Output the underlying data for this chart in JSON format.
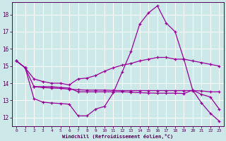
{
  "bg_color": "#cce8e8",
  "grid_color": "#ffffff",
  "line_color": "#990099",
  "xlabel": "Windchill (Refroidissement éolien,°C)",
  "ylim": [
    11.5,
    18.7
  ],
  "xlim": [
    -0.5,
    23.5
  ],
  "yticks": [
    12,
    13,
    14,
    15,
    16,
    17,
    18
  ],
  "xticks": [
    0,
    1,
    2,
    3,
    4,
    5,
    6,
    7,
    8,
    9,
    10,
    11,
    12,
    13,
    14,
    15,
    16,
    17,
    18,
    19,
    20,
    21,
    22,
    23
  ],
  "c1_x": [
    0,
    1,
    2,
    3,
    4,
    5,
    6,
    7,
    8,
    9,
    10,
    11,
    12,
    13,
    14,
    15,
    16,
    17,
    18,
    19,
    20,
    21,
    22,
    23
  ],
  "c1_y": [
    15.3,
    14.9,
    14.25,
    14.1,
    14.0,
    14.0,
    13.9,
    14.25,
    14.3,
    14.45,
    14.7,
    14.9,
    15.05,
    15.15,
    15.3,
    15.4,
    15.5,
    15.5,
    15.4,
    15.4,
    15.3,
    15.2,
    15.1,
    15.0
  ],
  "c2_x": [
    2,
    3,
    4,
    5,
    6,
    7,
    8,
    9,
    10,
    11,
    12,
    13,
    14,
    15,
    16,
    17,
    18,
    19,
    20,
    21,
    22,
    23
  ],
  "c2_y": [
    13.8,
    13.75,
    13.72,
    13.7,
    13.65,
    13.62,
    13.6,
    13.6,
    13.6,
    13.58,
    13.57,
    13.57,
    13.57,
    13.57,
    13.57,
    13.57,
    13.57,
    13.57,
    13.57,
    13.55,
    13.5,
    13.5
  ],
  "c3_x": [
    0,
    1,
    2,
    3,
    4,
    5,
    6,
    7,
    8,
    9,
    10,
    11,
    12,
    13,
    14,
    15,
    16,
    17,
    18,
    19,
    20,
    21,
    22,
    23
  ],
  "c3_y": [
    15.3,
    14.9,
    13.1,
    12.9,
    12.85,
    12.82,
    12.78,
    12.1,
    12.1,
    12.5,
    12.65,
    13.45,
    14.65,
    15.85,
    17.45,
    18.1,
    18.5,
    17.5,
    17.0,
    15.4,
    13.6,
    12.85,
    12.25,
    11.8
  ],
  "c4_x": [
    0,
    1,
    2,
    3,
    4,
    5,
    6,
    7,
    8,
    9,
    10,
    11,
    12,
    13,
    14,
    15,
    16,
    17,
    18,
    19,
    20,
    21,
    22,
    23
  ],
  "c4_y": [
    15.3,
    14.9,
    13.8,
    13.8,
    13.8,
    13.75,
    13.72,
    13.5,
    13.5,
    13.5,
    13.5,
    13.5,
    13.5,
    13.48,
    13.45,
    13.43,
    13.42,
    13.42,
    13.42,
    13.4,
    13.6,
    13.35,
    13.2,
    12.5
  ]
}
